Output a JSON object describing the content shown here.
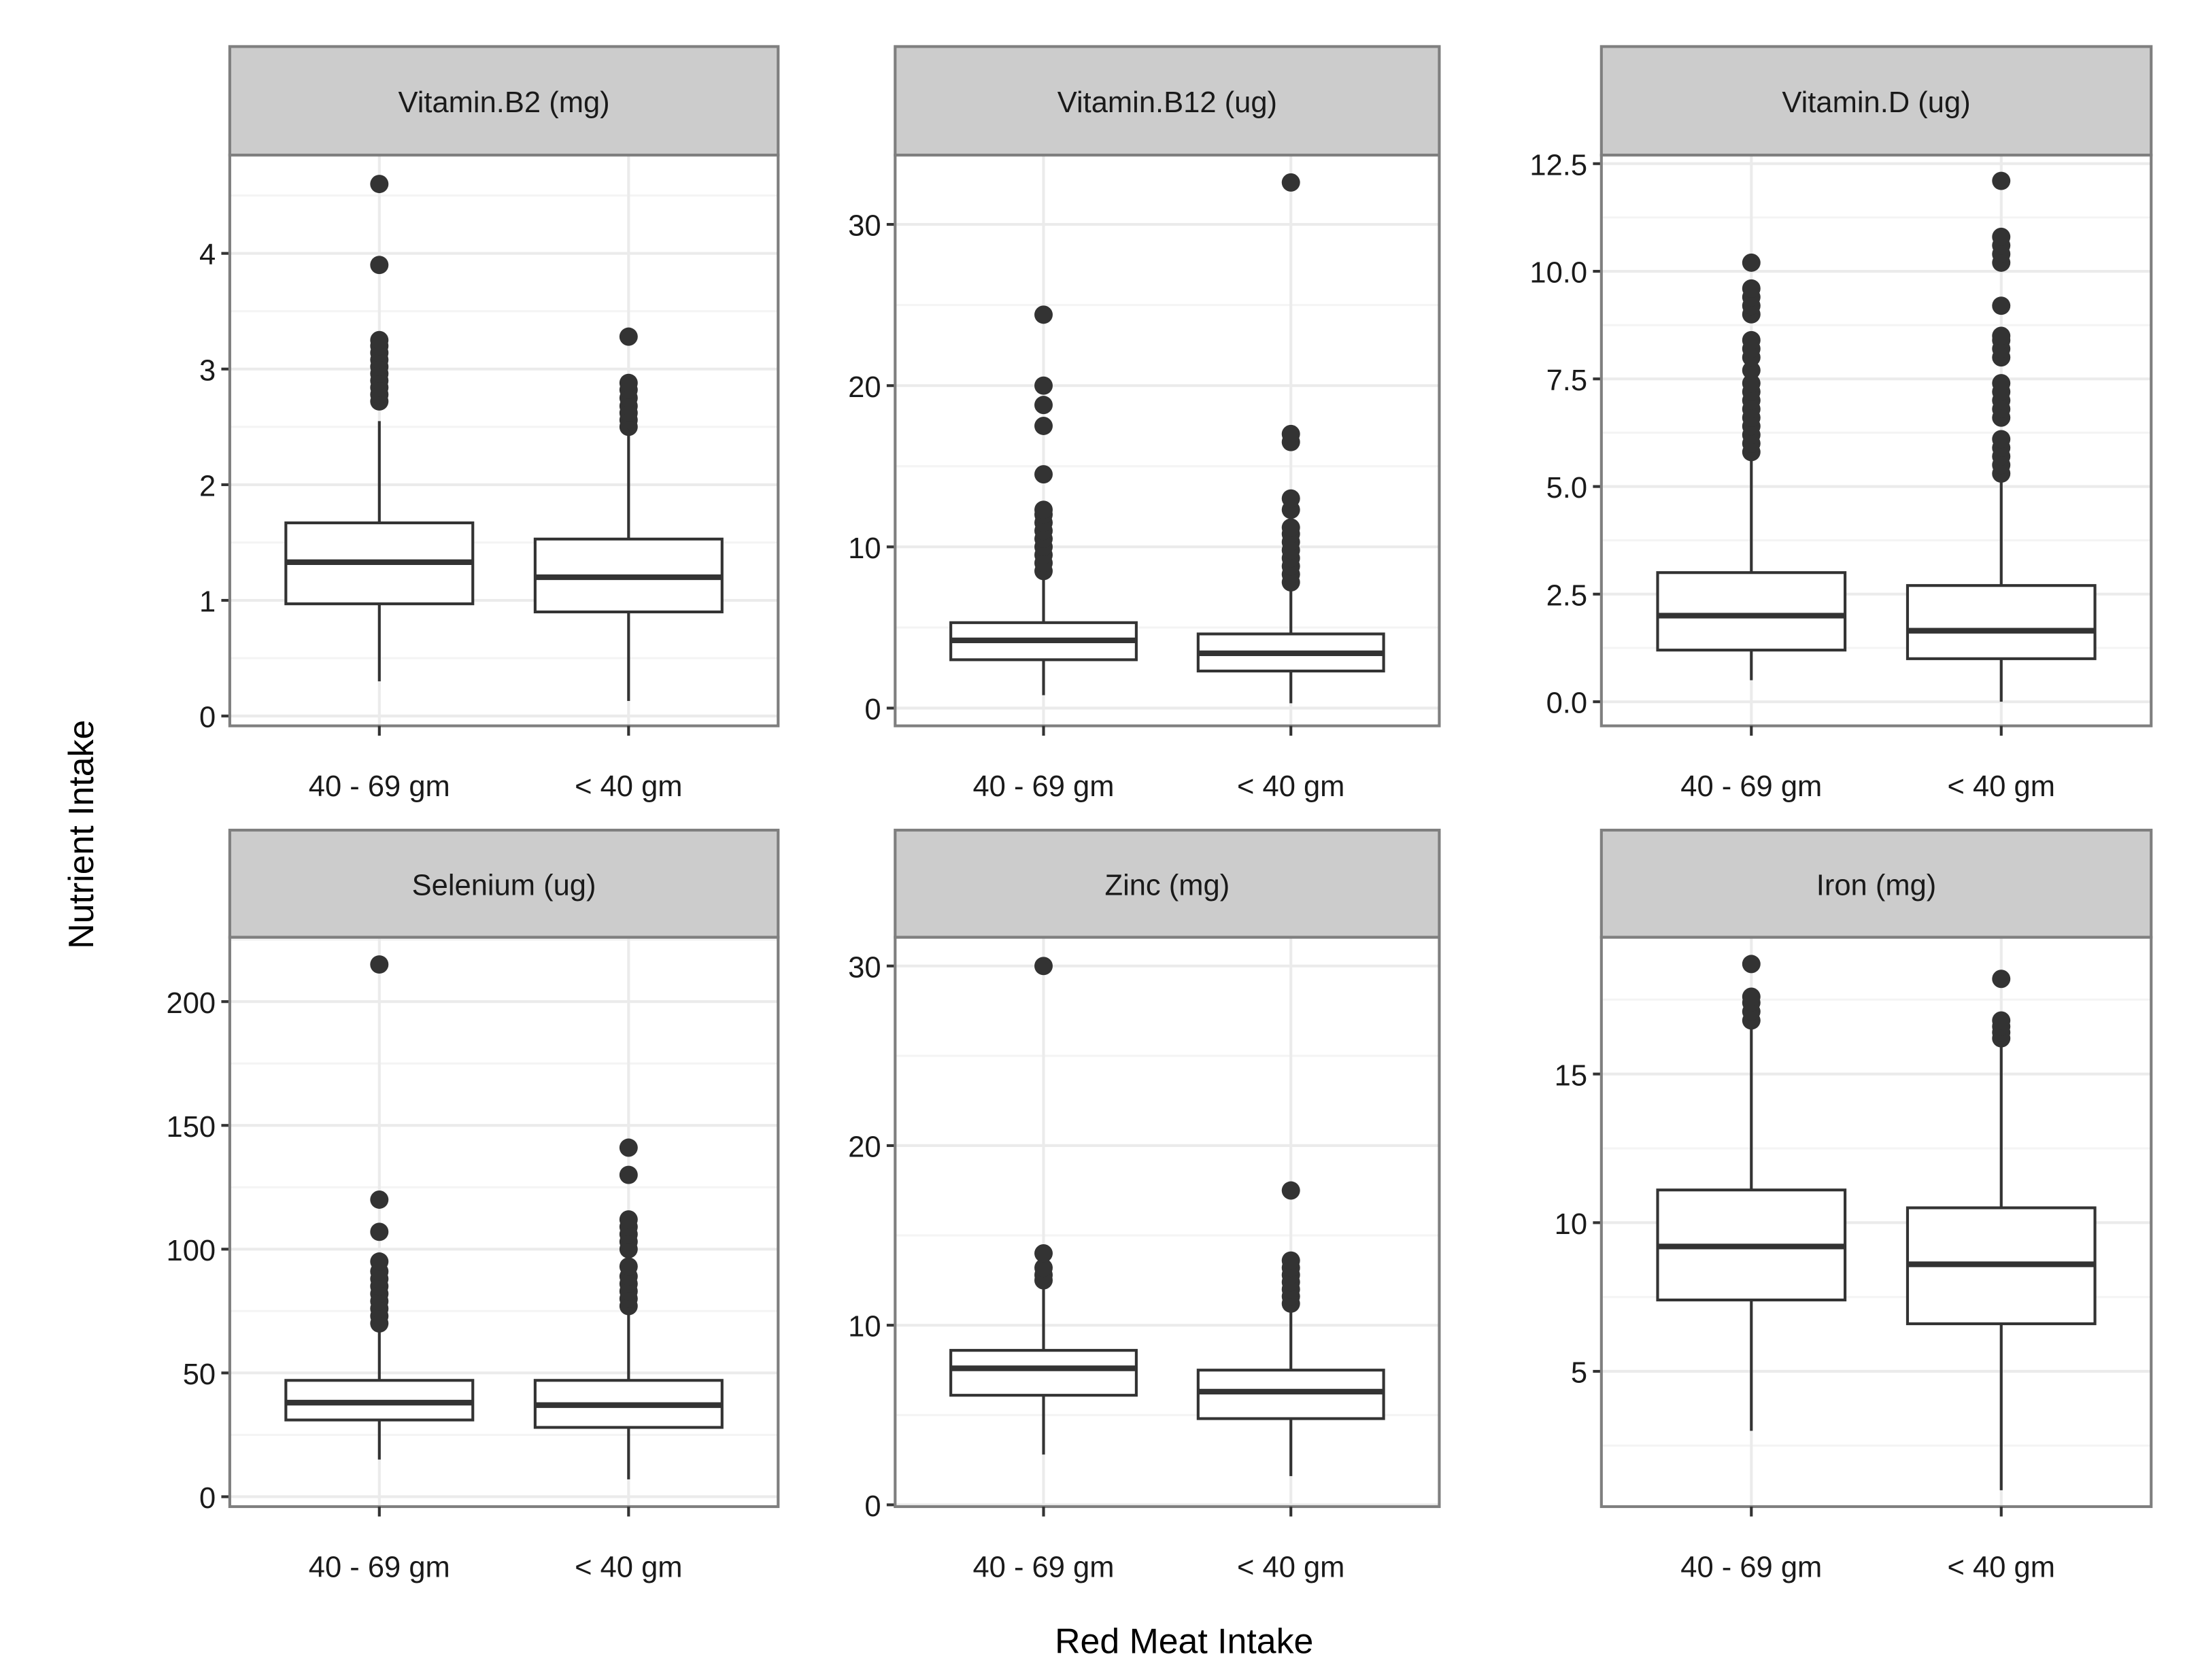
{
  "chart_data": {
    "type": "boxplot",
    "xlabel": "Red Meat Intake",
    "ylabel": "Nutrient Intake",
    "categories": [
      "40 - 69 gm",
      "< 40 gm"
    ],
    "colors": {
      "box": "#333333",
      "strip": "#cccccc",
      "grid": "#ebebeb",
      "border": "#7f7f7f"
    },
    "panels": [
      {
        "title": "Vitamin.B2 (mg)",
        "ylim": [
          -0.085,
          4.85
        ],
        "ticks": [
          0,
          1,
          2,
          3,
          4
        ],
        "tick_labels": [
          "0",
          "1",
          "2",
          "3",
          "4"
        ],
        "boxes": [
          {
            "category": "40 - 69 gm",
            "min": 0.3,
            "q1": 0.97,
            "median": 1.33,
            "q3": 1.67,
            "max": 2.55,
            "outliers": [
              2.72,
              2.78,
              2.84,
              2.9,
              2.96,
              3.02,
              3.08,
              3.14,
              3.2,
              3.25,
              3.9,
              4.6
            ]
          },
          {
            "category": "< 40 gm",
            "min": 0.13,
            "q1": 0.9,
            "median": 1.2,
            "q3": 1.53,
            "max": 2.45,
            "outliers": [
              2.5,
              2.56,
              2.62,
              2.68,
              2.75,
              2.82,
              2.88,
              3.28
            ]
          }
        ]
      },
      {
        "title": "Vitamin.B12 (ug)",
        "ylim": [
          -1.1,
          34.3
        ],
        "ticks": [
          0,
          10,
          20,
          30
        ],
        "tick_labels": [
          "0",
          "10",
          "20",
          "30"
        ],
        "boxes": [
          {
            "category": "40 - 69 gm",
            "min": 0.8,
            "q1": 3.0,
            "median": 4.2,
            "q3": 5.3,
            "max": 8.2,
            "outliers": [
              8.5,
              9.0,
              9.5,
              10.0,
              10.5,
              11.0,
              11.5,
              12.0,
              12.3,
              14.5,
              17.5,
              18.8,
              20.0,
              24.4
            ]
          },
          {
            "category": "< 40 gm",
            "min": 0.3,
            "q1": 2.3,
            "median": 3.4,
            "q3": 4.6,
            "max": 7.6,
            "outliers": [
              7.8,
              8.3,
              8.8,
              9.3,
              9.8,
              10.3,
              10.8,
              11.2,
              12.3,
              13.0,
              16.5,
              17.0,
              32.6
            ]
          }
        ]
      },
      {
        "title": "Vitamin.D (ug)",
        "ylim": [
          -0.56,
          12.7
        ],
        "ticks": [
          0,
          2.5,
          5,
          7.5,
          10,
          12.5
        ],
        "tick_labels": [
          "0.0",
          "2.5",
          "5.0",
          "7.5",
          "10.0",
          "12.5"
        ],
        "boxes": [
          {
            "category": "40 - 69 gm",
            "min": 0.5,
            "q1": 1.2,
            "median": 2.0,
            "q3": 3.0,
            "max": 5.6,
            "outliers": [
              5.8,
              6.0,
              6.2,
              6.4,
              6.6,
              6.8,
              7.0,
              7.2,
              7.4,
              7.7,
              8.0,
              8.2,
              8.4,
              9.0,
              9.2,
              9.4,
              9.6,
              10.2
            ]
          },
          {
            "category": "< 40 gm",
            "min": 0.0,
            "q1": 1.0,
            "median": 1.65,
            "q3": 2.7,
            "max": 5.1,
            "outliers": [
              5.3,
              5.5,
              5.7,
              5.9,
              6.1,
              6.6,
              6.8,
              7.0,
              7.2,
              7.4,
              8.0,
              8.2,
              8.4,
              8.5,
              9.2,
              10.2,
              10.4,
              10.6,
              10.8,
              12.1
            ]
          }
        ]
      },
      {
        "title": "Selenium (ug)",
        "ylim": [
          -4,
          226
        ],
        "ticks": [
          0,
          50,
          100,
          150,
          200
        ],
        "tick_labels": [
          "0",
          "50",
          "100",
          "150",
          "200"
        ],
        "boxes": [
          {
            "category": "40 - 69 gm",
            "min": 15,
            "q1": 31,
            "median": 38,
            "q3": 47,
            "max": 68,
            "outliers": [
              70,
              73,
              76,
              79,
              82,
              85,
              88,
              91,
              95,
              107,
              120,
              215
            ]
          },
          {
            "category": "< 40 gm",
            "min": 7,
            "q1": 28,
            "median": 37,
            "q3": 47,
            "max": 75,
            "outliers": [
              77,
              80,
              83,
              86,
              89,
              93,
              100,
              103,
              106,
              109,
              112,
              130,
              141
            ]
          }
        ]
      },
      {
        "title": "Zinc (mg)",
        "ylim": [
          -0.1,
          31.6
        ],
        "ticks": [
          0,
          10,
          20,
          30
        ],
        "tick_labels": [
          "0",
          "10",
          "20",
          "30"
        ],
        "boxes": [
          {
            "category": "40 - 69 gm",
            "min": 2.8,
            "q1": 6.1,
            "median": 7.6,
            "q3": 8.6,
            "max": 12.2,
            "outliers": [
              12.5,
              12.8,
              13.2,
              14.0,
              30.0
            ]
          },
          {
            "category": "< 40 gm",
            "min": 1.6,
            "q1": 4.8,
            "median": 6.3,
            "q3": 7.5,
            "max": 11.0,
            "outliers": [
              11.2,
              11.6,
              12.0,
              12.4,
              12.8,
              13.2,
              13.6,
              17.5
            ]
          }
        ]
      },
      {
        "title": "Iron (mg)",
        "ylim": [
          0.45,
          19.6
        ],
        "ticks": [
          5,
          10,
          15
        ],
        "tick_labels": [
          "5",
          "10",
          "15"
        ],
        "boxes": [
          {
            "category": "40 - 69 gm",
            "min": 3.0,
            "q1": 7.4,
            "median": 9.2,
            "q3": 11.1,
            "max": 16.6,
            "outliers": [
              16.8,
              17.1,
              17.4,
              17.6,
              18.7
            ]
          },
          {
            "category": "< 40 gm",
            "min": 1.0,
            "q1": 6.6,
            "median": 8.6,
            "q3": 10.5,
            "max": 16.0,
            "outliers": [
              16.2,
              16.4,
              16.6,
              16.8,
              18.2
            ]
          }
        ]
      }
    ]
  }
}
